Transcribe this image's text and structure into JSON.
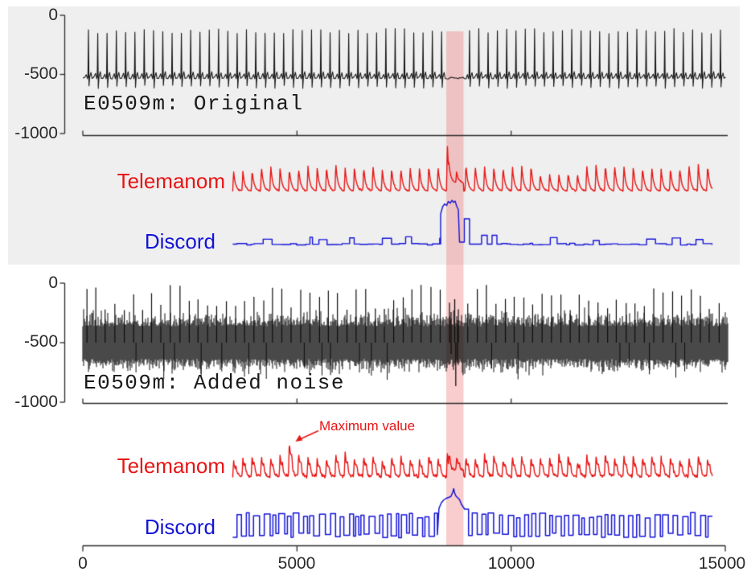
{
  "figure": {
    "background": "#ffffff",
    "panel_background": "#efefef",
    "axis_color": "#2a2a2a",
    "band_color": "rgba(236,90,90,0.30)"
  },
  "chart_data": {
    "type": "line",
    "x_axis": {
      "range": [
        0,
        15000
      ],
      "ticks": [
        0,
        5000,
        10000,
        15000
      ],
      "tick_labels": [
        "0",
        "5000",
        "10000",
        "15000"
      ]
    },
    "anomaly_band": {
      "x_range": [
        8485,
        8888
      ],
      "color": "rgba(236,90,90,0.30)"
    },
    "panels": [
      {
        "title": "E0509m: Original",
        "background": "#efefef",
        "ecg": {
          "color": "#141414",
          "y_range": [
            0,
            -1000
          ],
          "y_ticks": [
            0,
            -500,
            -1000
          ],
          "y_tick_labels": [
            "0",
            "-500",
            "-1000"
          ],
          "baseline": -530,
          "r_peak_level": -150,
          "beat_interval": 217,
          "x_range": [
            0,
            15000
          ],
          "anomaly": {
            "x": 8700,
            "min": -845,
            "note": "irregular beats inside highlighted band"
          }
        },
        "scores": [
          {
            "name": "Telemanom",
            "color": "#e81414",
            "x_range": [
              3500,
              14700
            ],
            "peak_interval": 217,
            "max_x": 8504,
            "profile": "periodic sawtooth anomaly-score peaks; maximum inside the highlighted band"
          },
          {
            "name": "Discord",
            "color": "#1414d8",
            "x_range": [
              3500,
              14700
            ],
            "anomaly_plateau_x": [
              8354,
              8795
            ],
            "secondary_pulses_x": [
              [
                8907,
                9029
              ],
              [
                9311,
                9442
              ],
              [
                9555,
                9668
              ]
            ],
            "profile": "flat score with small steps; high plateau inside the highlighted band"
          }
        ]
      },
      {
        "title": "E0509m: Added noise",
        "background": "#ffffff",
        "ecg": {
          "color": "#0d0d0d",
          "y_range": [
            0,
            -1000
          ],
          "y_ticks": [
            0,
            -500,
            -1000
          ],
          "y_tick_labels": [
            "0",
            "-500",
            "-1000"
          ],
          "baseline": -500,
          "noise_band": [
            -330,
            -670
          ],
          "r_peak_level": -150,
          "beat_interval": 217,
          "x_range": [
            0,
            15000
          ],
          "anomaly": {
            "x": 8700,
            "min": -880,
            "max": -270
          }
        },
        "scores": [
          {
            "name": "Telemanom",
            "color": "#e81414",
            "x_range": [
              3500,
              14700
            ],
            "peak_interval": 217,
            "max_x": 4862,
            "annotation": {
              "text": "Maximum value",
              "x": 4862
            },
            "profile": "noisy periodic peaks; global maximum at x≈4860, slightly elevated inside band"
          },
          {
            "name": "Discord",
            "color": "#1414d8",
            "x_range": [
              3500,
              14700
            ],
            "anomaly_plateau_x": [
              8315,
              8915
            ],
            "profile": "square-wave oscillation; elevated rounded plateau inside the highlighted band"
          }
        ]
      }
    ]
  }
}
